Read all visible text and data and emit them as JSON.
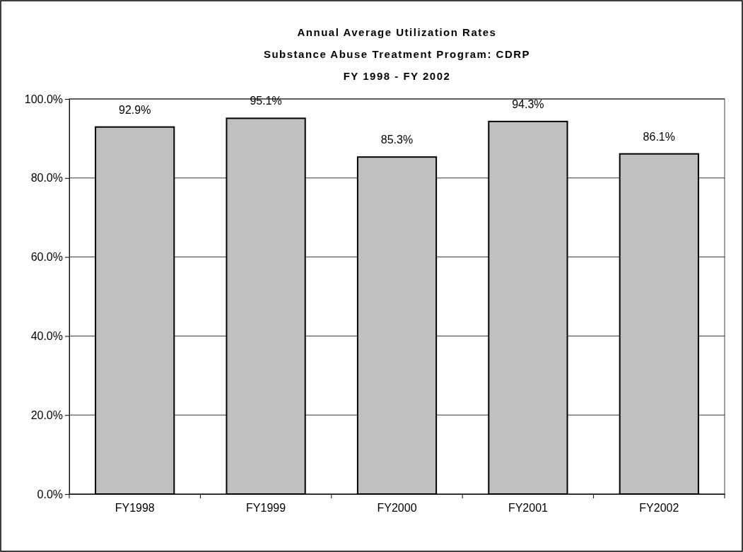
{
  "chart_data": {
    "type": "bar",
    "title": "Annual Average Utilization Rates\nSubstance Abuse Treatment Program: CDRP\nFY 1998 - FY 2002",
    "categories": [
      "FY1998",
      "FY1999",
      "FY2000",
      "FY2001",
      "FY2002"
    ],
    "values": [
      92.9,
      95.1,
      85.3,
      94.3,
      86.1
    ],
    "value_labels": [
      "92.9%",
      "95.1%",
      "85.3%",
      "94.3%",
      "86.1%"
    ],
    "color": "#c0c0c0",
    "ylim": [
      0,
      100
    ],
    "yticks": [
      {
        "value": 0,
        "label": "0.0%"
      },
      {
        "value": 20,
        "label": "20.0%"
      },
      {
        "value": 40,
        "label": "40.0%"
      },
      {
        "value": 60,
        "label": "60.0%"
      },
      {
        "value": 80,
        "label": "80.0%"
      },
      {
        "value": 100,
        "label": "100.0%"
      }
    ],
    "grid": "y"
  }
}
